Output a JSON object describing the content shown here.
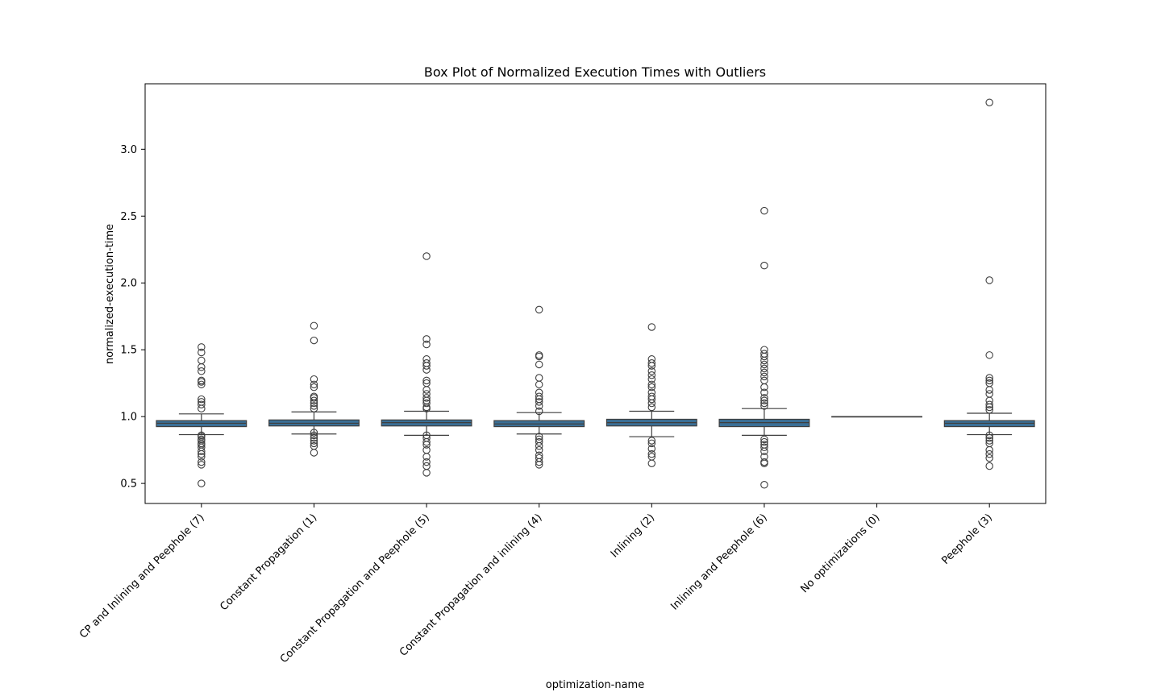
{
  "chart_data": {
    "type": "box",
    "title": "Box Plot of Normalized Execution Times with Outliers",
    "xlabel": "optimization-name",
    "ylabel": "normalized-execution-time",
    "ylim": [
      0.35,
      3.49
    ],
    "yticks": [
      0.5,
      1.0,
      1.5,
      2.0,
      2.5,
      3.0
    ],
    "ytick_labels": [
      "0.5",
      "1.0",
      "1.5",
      "2.0",
      "2.5",
      "3.0"
    ],
    "grid": false,
    "legend": "none",
    "box_color": "#3a6f96",
    "categories": [
      "CP and Inlining and Peephole (7)",
      "Constant Propagation (1)",
      "Constant Propagation and Peephole (5)",
      "Constant Propagation and inlining (4)",
      "Inlining (2)",
      "Inlining and Peephole (6)",
      "No optimizations (0)",
      "Peephole (3)"
    ],
    "boxes": [
      {
        "q1": 0.925,
        "median": 0.95,
        "q3": 0.97,
        "whisker_low": 0.865,
        "whisker_high": 1.02,
        "outliers": [
          0.5,
          0.64,
          0.66,
          0.7,
          0.72,
          0.74,
          0.77,
          0.79,
          0.8,
          0.82,
          0.83,
          0.85,
          0.86,
          1.06,
          1.09,
          1.11,
          1.13,
          1.24,
          1.26,
          1.27,
          1.34,
          1.37,
          1.42,
          1.48,
          1.52
        ]
      },
      {
        "q1": 0.93,
        "median": 0.95,
        "q3": 0.975,
        "whisker_low": 0.87,
        "whisker_high": 1.035,
        "outliers": [
          0.73,
          0.78,
          0.8,
          0.82,
          0.84,
          0.86,
          0.88,
          1.06,
          1.08,
          1.1,
          1.12,
          1.14,
          1.15,
          1.22,
          1.24,
          1.28,
          1.57,
          1.68
        ]
      },
      {
        "q1": 0.93,
        "median": 0.955,
        "q3": 0.975,
        "whisker_low": 0.86,
        "whisker_high": 1.04,
        "outliers": [
          0.58,
          0.63,
          0.66,
          0.7,
          0.75,
          0.79,
          0.81,
          0.84,
          0.86,
          1.06,
          1.07,
          1.1,
          1.12,
          1.14,
          1.17,
          1.2,
          1.25,
          1.27,
          1.35,
          1.38,
          1.4,
          1.43,
          1.54,
          1.58,
          2.2
        ]
      },
      {
        "q1": 0.925,
        "median": 0.945,
        "q3": 0.97,
        "whisker_low": 0.87,
        "whisker_high": 1.03,
        "outliers": [
          0.64,
          0.66,
          0.69,
          0.71,
          0.75,
          0.78,
          0.81,
          0.83,
          0.85,
          1.04,
          1.08,
          1.11,
          1.13,
          1.15,
          1.18,
          1.24,
          1.29,
          1.39,
          1.45,
          1.46,
          1.8
        ]
      },
      {
        "q1": 0.93,
        "median": 0.955,
        "q3": 0.98,
        "whisker_low": 0.85,
        "whisker_high": 1.04,
        "outliers": [
          0.65,
          0.7,
          0.72,
          0.76,
          0.8,
          0.82,
          1.07,
          1.1,
          1.13,
          1.15,
          1.18,
          1.22,
          1.24,
          1.28,
          1.31,
          1.34,
          1.38,
          1.4,
          1.43,
          1.67
        ]
      },
      {
        "q1": 0.925,
        "median": 0.955,
        "q3": 0.98,
        "whisker_low": 0.86,
        "whisker_high": 1.06,
        "outliers": [
          0.49,
          0.65,
          0.66,
          0.7,
          0.74,
          0.77,
          0.79,
          0.81,
          0.83,
          1.08,
          1.1,
          1.12,
          1.14,
          1.18,
          1.22,
          1.27,
          1.3,
          1.33,
          1.36,
          1.39,
          1.42,
          1.45,
          1.47,
          1.5,
          2.13,
          2.54
        ]
      },
      {
        "q1": 1.0,
        "median": 1.0,
        "q3": 1.0,
        "whisker_low": 1.0,
        "whisker_high": 1.0,
        "outliers": []
      },
      {
        "q1": 0.925,
        "median": 0.95,
        "q3": 0.97,
        "whisker_low": 0.865,
        "whisker_high": 1.025,
        "outliers": [
          0.63,
          0.69,
          0.72,
          0.75,
          0.8,
          0.82,
          0.84,
          0.86,
          1.05,
          1.07,
          1.09,
          1.12,
          1.17,
          1.2,
          1.25,
          1.27,
          1.29,
          1.46,
          2.02,
          3.35
        ]
      }
    ]
  }
}
